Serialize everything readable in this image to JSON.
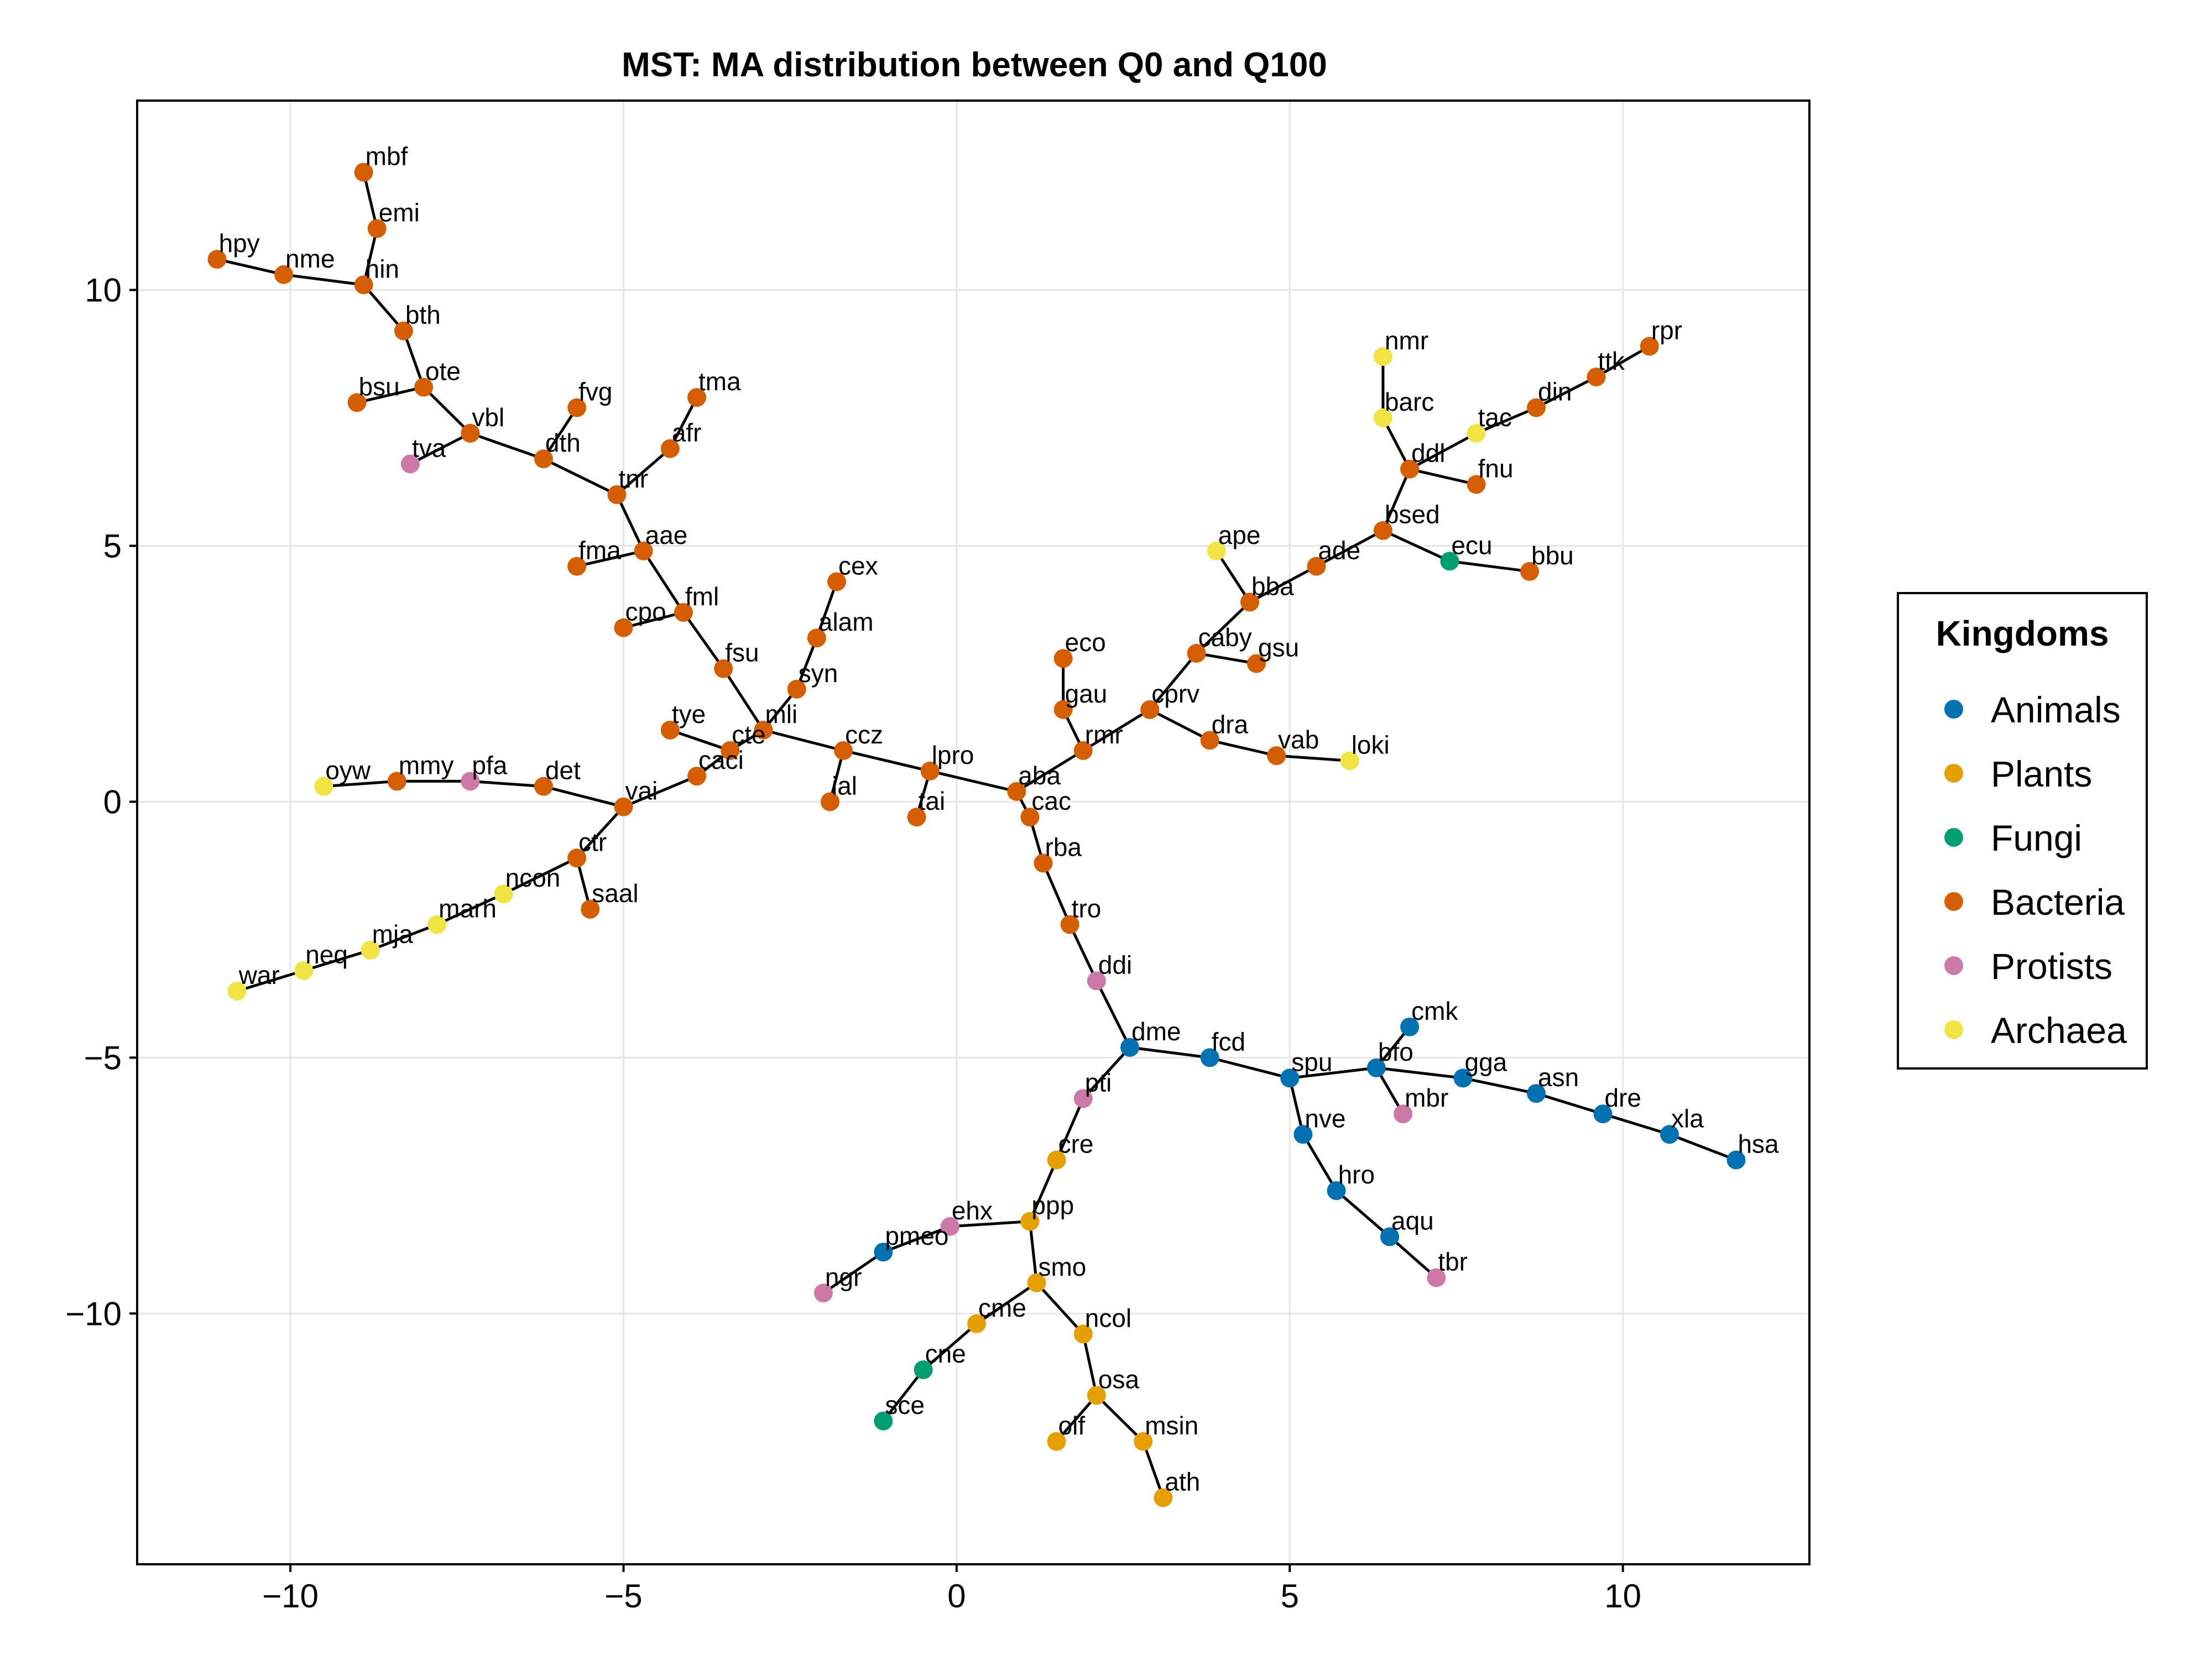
{
  "chart_data": {
    "type": "scatter",
    "title": "MST: MA distribution between Q0 and Q100",
    "xlabel": "",
    "ylabel": "",
    "xlim": [
      -12.3,
      12.8
    ],
    "ylim": [
      -14.9,
      13.7
    ],
    "xticks": [
      -10,
      -5,
      0,
      5,
      10
    ],
    "xtick_labels": [
      "−10",
      "−5",
      "0",
      "5",
      "10"
    ],
    "yticks": [
      -10,
      -5,
      0,
      5,
      10
    ],
    "ytick_labels": [
      "−10",
      "−5",
      "0",
      "5",
      "10"
    ],
    "grid": true,
    "legend": {
      "title": "Kingdoms",
      "placement": "right",
      "entries": [
        {
          "name": "Animals",
          "color": "#0072b2"
        },
        {
          "name": "Plants",
          "color": "#e69f00"
        },
        {
          "name": "Fungi",
          "color": "#009e73"
        },
        {
          "name": "Bacteria",
          "color": "#d55e00"
        },
        {
          "name": "Protists",
          "color": "#cc79a7"
        },
        {
          "name": "Archaea",
          "color": "#f0e442"
        }
      ]
    },
    "nodes": [
      {
        "label": "mbf",
        "x": -8.9,
        "y": 12.3,
        "kingdom": "Bacteria"
      },
      {
        "label": "emi",
        "x": -8.7,
        "y": 11.2,
        "kingdom": "Bacteria"
      },
      {
        "label": "hin",
        "x": -8.9,
        "y": 10.1,
        "kingdom": "Bacteria"
      },
      {
        "label": "hpy",
        "x": -11.1,
        "y": 10.6,
        "kingdom": "Bacteria"
      },
      {
        "label": "nme",
        "x": -10.1,
        "y": 10.3,
        "kingdom": "Bacteria"
      },
      {
        "label": "bth",
        "x": -8.3,
        "y": 9.2,
        "kingdom": "Bacteria"
      },
      {
        "label": "ote",
        "x": -8.0,
        "y": 8.1,
        "kingdom": "Bacteria"
      },
      {
        "label": "bsu",
        "x": -9.0,
        "y": 7.8,
        "kingdom": "Bacteria"
      },
      {
        "label": "vbl",
        "x": -7.3,
        "y": 7.2,
        "kingdom": "Bacteria"
      },
      {
        "label": "tva",
        "x": -8.2,
        "y": 6.6,
        "kingdom": "Protists"
      },
      {
        "label": "fvg",
        "x": -5.7,
        "y": 7.7,
        "kingdom": "Bacteria"
      },
      {
        "label": "dth",
        "x": -6.2,
        "y": 6.7,
        "kingdom": "Bacteria"
      },
      {
        "label": "tma",
        "x": -3.9,
        "y": 7.9,
        "kingdom": "Bacteria"
      },
      {
        "label": "afr",
        "x": -4.3,
        "y": 6.9,
        "kingdom": "Bacteria"
      },
      {
        "label": "tnr",
        "x": -5.1,
        "y": 6.0,
        "kingdom": "Bacteria"
      },
      {
        "label": "aae",
        "x": -4.7,
        "y": 4.9,
        "kingdom": "Bacteria"
      },
      {
        "label": "fma",
        "x": -5.7,
        "y": 4.6,
        "kingdom": "Bacteria"
      },
      {
        "label": "fml",
        "x": -4.1,
        "y": 3.7,
        "kingdom": "Bacteria"
      },
      {
        "label": "cpo",
        "x": -5.0,
        "y": 3.4,
        "kingdom": "Bacteria"
      },
      {
        "label": "fsu",
        "x": -3.5,
        "y": 2.6,
        "kingdom": "Bacteria"
      },
      {
        "label": "cex",
        "x": -1.8,
        "y": 4.3,
        "kingdom": "Bacteria"
      },
      {
        "label": "alam",
        "x": -2.1,
        "y": 3.2,
        "kingdom": "Bacteria"
      },
      {
        "label": "syn",
        "x": -2.4,
        "y": 2.2,
        "kingdom": "Bacteria"
      },
      {
        "label": "mli",
        "x": -2.9,
        "y": 1.4,
        "kingdom": "Bacteria"
      },
      {
        "label": "cte",
        "x": -3.4,
        "y": 1.0,
        "kingdom": "Bacteria"
      },
      {
        "label": "tye",
        "x": -4.3,
        "y": 1.4,
        "kingdom": "Bacteria"
      },
      {
        "label": "caci",
        "x": -3.9,
        "y": 0.5,
        "kingdom": "Bacteria"
      },
      {
        "label": "ccz",
        "x": -1.7,
        "y": 1.0,
        "kingdom": "Bacteria"
      },
      {
        "label": "lpro",
        "x": -0.4,
        "y": 0.6,
        "kingdom": "Bacteria"
      },
      {
        "label": "ial",
        "x": -1.9,
        "y": 0.0,
        "kingdom": "Bacteria"
      },
      {
        "label": "tai",
        "x": -0.6,
        "y": -0.3,
        "kingdom": "Bacteria"
      },
      {
        "label": "aba",
        "x": 0.9,
        "y": 0.2,
        "kingdom": "Bacteria"
      },
      {
        "label": "cac",
        "x": 1.1,
        "y": -0.3,
        "kingdom": "Bacteria"
      },
      {
        "label": "rba",
        "x": 1.3,
        "y": -1.2,
        "kingdom": "Bacteria"
      },
      {
        "label": "tro",
        "x": 1.7,
        "y": -2.4,
        "kingdom": "Bacteria"
      },
      {
        "label": "ddi",
        "x": 2.1,
        "y": -3.5,
        "kingdom": "Protists"
      },
      {
        "label": "dme",
        "x": 2.6,
        "y": -4.8,
        "kingdom": "Animals"
      },
      {
        "label": "fcd",
        "x": 3.8,
        "y": -5.0,
        "kingdom": "Animals"
      },
      {
        "label": "spu",
        "x": 5.0,
        "y": -5.4,
        "kingdom": "Animals"
      },
      {
        "label": "bfo",
        "x": 6.3,
        "y": -5.2,
        "kingdom": "Animals"
      },
      {
        "label": "cmk",
        "x": 6.8,
        "y": -4.4,
        "kingdom": "Animals"
      },
      {
        "label": "mbr",
        "x": 6.7,
        "y": -6.1,
        "kingdom": "Protists"
      },
      {
        "label": "gga",
        "x": 7.6,
        "y": -5.4,
        "kingdom": "Animals"
      },
      {
        "label": "asn",
        "x": 8.7,
        "y": -5.7,
        "kingdom": "Animals"
      },
      {
        "label": "dre",
        "x": 9.7,
        "y": -6.1,
        "kingdom": "Animals"
      },
      {
        "label": "xla",
        "x": 10.7,
        "y": -6.5,
        "kingdom": "Animals"
      },
      {
        "label": "hsa",
        "x": 11.7,
        "y": -7.0,
        "kingdom": "Animals"
      },
      {
        "label": "nve",
        "x": 5.2,
        "y": -6.5,
        "kingdom": "Animals"
      },
      {
        "label": "hro",
        "x": 5.7,
        "y": -7.6,
        "kingdom": "Animals"
      },
      {
        "label": "aqu",
        "x": 6.5,
        "y": -8.5,
        "kingdom": "Animals"
      },
      {
        "label": "tbr",
        "x": 7.2,
        "y": -9.3,
        "kingdom": "Protists"
      },
      {
        "label": "pti",
        "x": 1.9,
        "y": -5.8,
        "kingdom": "Protists"
      },
      {
        "label": "cre",
        "x": 1.5,
        "y": -7.0,
        "kingdom": "Plants"
      },
      {
        "label": "ppp",
        "x": 1.1,
        "y": -8.2,
        "kingdom": "Plants"
      },
      {
        "label": "ehx",
        "x": -0.1,
        "y": -8.3,
        "kingdom": "Protists"
      },
      {
        "label": "pmeo",
        "x": -1.1,
        "y": -8.8,
        "kingdom": "Animals"
      },
      {
        "label": "ngr",
        "x": -2.0,
        "y": -9.6,
        "kingdom": "Protists"
      },
      {
        "label": "smo",
        "x": 1.2,
        "y": -9.4,
        "kingdom": "Plants"
      },
      {
        "label": "cme",
        "x": 0.3,
        "y": -10.2,
        "kingdom": "Plants"
      },
      {
        "label": "cne",
        "x": -0.5,
        "y": -11.1,
        "kingdom": "Fungi"
      },
      {
        "label": "sce",
        "x": -1.1,
        "y": -12.1,
        "kingdom": "Fungi"
      },
      {
        "label": "ncol",
        "x": 1.9,
        "y": -10.4,
        "kingdom": "Plants"
      },
      {
        "label": "osa",
        "x": 2.1,
        "y": -11.6,
        "kingdom": "Plants"
      },
      {
        "label": "olf",
        "x": 1.5,
        "y": -12.5,
        "kingdom": "Plants"
      },
      {
        "label": "msin",
        "x": 2.8,
        "y": -12.5,
        "kingdom": "Plants"
      },
      {
        "label": "ath",
        "x": 3.1,
        "y": -13.6,
        "kingdom": "Plants"
      },
      {
        "label": "rmr",
        "x": 1.9,
        "y": 1.0,
        "kingdom": "Bacteria"
      },
      {
        "label": "gau",
        "x": 1.6,
        "y": 1.8,
        "kingdom": "Bacteria"
      },
      {
        "label": "eco",
        "x": 1.6,
        "y": 2.8,
        "kingdom": "Bacteria"
      },
      {
        "label": "cprv",
        "x": 2.9,
        "y": 1.8,
        "kingdom": "Bacteria"
      },
      {
        "label": "dra",
        "x": 3.8,
        "y": 1.2,
        "kingdom": "Bacteria"
      },
      {
        "label": "vab",
        "x": 4.8,
        "y": 0.9,
        "kingdom": "Bacteria"
      },
      {
        "label": "loki",
        "x": 5.9,
        "y": 0.8,
        "kingdom": "Archaea"
      },
      {
        "label": "caby",
        "x": 3.6,
        "y": 2.9,
        "kingdom": "Bacteria"
      },
      {
        "label": "gsu",
        "x": 4.5,
        "y": 2.7,
        "kingdom": "Bacteria"
      },
      {
        "label": "bba",
        "x": 4.4,
        "y": 3.9,
        "kingdom": "Bacteria"
      },
      {
        "label": "ape",
        "x": 3.9,
        "y": 4.9,
        "kingdom": "Archaea"
      },
      {
        "label": "ade",
        "x": 5.4,
        "y": 4.6,
        "kingdom": "Bacteria"
      },
      {
        "label": "bsed",
        "x": 6.4,
        "y": 5.3,
        "kingdom": "Bacteria"
      },
      {
        "label": "ecu",
        "x": 7.4,
        "y": 4.7,
        "kingdom": "Fungi"
      },
      {
        "label": "bbu",
        "x": 8.6,
        "y": 4.5,
        "kingdom": "Bacteria"
      },
      {
        "label": "ddl",
        "x": 6.8,
        "y": 6.5,
        "kingdom": "Bacteria"
      },
      {
        "label": "fnu",
        "x": 7.8,
        "y": 6.2,
        "kingdom": "Bacteria"
      },
      {
        "label": "barc",
        "x": 6.4,
        "y": 7.5,
        "kingdom": "Archaea"
      },
      {
        "label": "nmr",
        "x": 6.4,
        "y": 8.7,
        "kingdom": "Archaea"
      },
      {
        "label": "tac",
        "x": 7.8,
        "y": 7.2,
        "kingdom": "Archaea"
      },
      {
        "label": "din",
        "x": 8.7,
        "y": 7.7,
        "kingdom": "Bacteria"
      },
      {
        "label": "ttk",
        "x": 9.6,
        "y": 8.3,
        "kingdom": "Bacteria"
      },
      {
        "label": "rpr",
        "x": 10.4,
        "y": 8.9,
        "kingdom": "Bacteria"
      },
      {
        "label": "vai",
        "x": -5.0,
        "y": -0.1,
        "kingdom": "Bacteria"
      },
      {
        "label": "det",
        "x": -6.2,
        "y": 0.3,
        "kingdom": "Bacteria"
      },
      {
        "label": "pfa",
        "x": -7.3,
        "y": 0.4,
        "kingdom": "Protists"
      },
      {
        "label": "mmy",
        "x": -8.4,
        "y": 0.4,
        "kingdom": "Bacteria"
      },
      {
        "label": "oyw",
        "x": -9.5,
        "y": 0.3,
        "kingdom": "Archaea"
      },
      {
        "label": "ctr",
        "x": -5.7,
        "y": -1.1,
        "kingdom": "Bacteria"
      },
      {
        "label": "saal",
        "x": -5.5,
        "y": -2.1,
        "kingdom": "Bacteria"
      },
      {
        "label": "ncon",
        "x": -6.8,
        "y": -1.8,
        "kingdom": "Archaea"
      },
      {
        "label": "marh",
        "x": -7.8,
        "y": -2.4,
        "kingdom": "Archaea"
      },
      {
        "label": "mja",
        "x": -8.8,
        "y": -2.9,
        "kingdom": "Archaea"
      },
      {
        "label": "neq",
        "x": -9.8,
        "y": -3.3,
        "kingdom": "Archaea"
      },
      {
        "label": "war",
        "x": -10.8,
        "y": -3.7,
        "kingdom": "Archaea"
      }
    ],
    "edges": [
      [
        "mbf",
        "emi"
      ],
      [
        "emi",
        "hin"
      ],
      [
        "hin",
        "nme"
      ],
      [
        "nme",
        "hpy"
      ],
      [
        "hin",
        "bth"
      ],
      [
        "bth",
        "ote"
      ],
      [
        "ote",
        "bsu"
      ],
      [
        "ote",
        "vbl"
      ],
      [
        "vbl",
        "tva"
      ],
      [
        "vbl",
        "dth"
      ],
      [
        "dth",
        "fvg"
      ],
      [
        "dth",
        "tnr"
      ],
      [
        "tnr",
        "afr"
      ],
      [
        "afr",
        "tma"
      ],
      [
        "tnr",
        "aae"
      ],
      [
        "aae",
        "fma"
      ],
      [
        "aae",
        "fml"
      ],
      [
        "fml",
        "cpo"
      ],
      [
        "fml",
        "fsu"
      ],
      [
        "fsu",
        "mli"
      ],
      [
        "mli",
        "syn"
      ],
      [
        "syn",
        "alam"
      ],
      [
        "alam",
        "cex"
      ],
      [
        "mli",
        "cte"
      ],
      [
        "cte",
        "tye"
      ],
      [
        "cte",
        "caci"
      ],
      [
        "caci",
        "vai"
      ],
      [
        "vai",
        "det"
      ],
      [
        "det",
        "pfa"
      ],
      [
        "pfa",
        "mmy"
      ],
      [
        "mmy",
        "oyw"
      ],
      [
        "vai",
        "ctr"
      ],
      [
        "ctr",
        "saal"
      ],
      [
        "ctr",
        "ncon"
      ],
      [
        "ncon",
        "marh"
      ],
      [
        "marh",
        "mja"
      ],
      [
        "mja",
        "neq"
      ],
      [
        "neq",
        "war"
      ],
      [
        "mli",
        "ccz"
      ],
      [
        "ccz",
        "ial"
      ],
      [
        "ccz",
        "lpro"
      ],
      [
        "lpro",
        "tai"
      ],
      [
        "lpro",
        "aba"
      ],
      [
        "aba",
        "cac"
      ],
      [
        "cac",
        "rba"
      ],
      [
        "rba",
        "tro"
      ],
      [
        "tro",
        "ddi"
      ],
      [
        "ddi",
        "dme"
      ],
      [
        "dme",
        "fcd"
      ],
      [
        "fcd",
        "spu"
      ],
      [
        "spu",
        "bfo"
      ],
      [
        "bfo",
        "cmk"
      ],
      [
        "bfo",
        "mbr"
      ],
      [
        "bfo",
        "gga"
      ],
      [
        "gga",
        "asn"
      ],
      [
        "asn",
        "dre"
      ],
      [
        "dre",
        "xla"
      ],
      [
        "xla",
        "hsa"
      ],
      [
        "spu",
        "nve"
      ],
      [
        "nve",
        "hro"
      ],
      [
        "hro",
        "aqu"
      ],
      [
        "aqu",
        "tbr"
      ],
      [
        "dme",
        "pti"
      ],
      [
        "pti",
        "cre"
      ],
      [
        "cre",
        "ppp"
      ],
      [
        "ppp",
        "ehx"
      ],
      [
        "ehx",
        "pmeo"
      ],
      [
        "pmeo",
        "ngr"
      ],
      [
        "ppp",
        "smo"
      ],
      [
        "smo",
        "cme"
      ],
      [
        "cme",
        "cne"
      ],
      [
        "cne",
        "sce"
      ],
      [
        "smo",
        "ncol"
      ],
      [
        "ncol",
        "osa"
      ],
      [
        "osa",
        "olf"
      ],
      [
        "osa",
        "msin"
      ],
      [
        "msin",
        "ath"
      ],
      [
        "aba",
        "rmr"
      ],
      [
        "rmr",
        "gau"
      ],
      [
        "gau",
        "eco"
      ],
      [
        "rmr",
        "cprv"
      ],
      [
        "cprv",
        "dra"
      ],
      [
        "dra",
        "vab"
      ],
      [
        "vab",
        "loki"
      ],
      [
        "cprv",
        "caby"
      ],
      [
        "caby",
        "gsu"
      ],
      [
        "caby",
        "bba"
      ],
      [
        "bba",
        "ape"
      ],
      [
        "bba",
        "ade"
      ],
      [
        "ade",
        "bsed"
      ],
      [
        "bsed",
        "ecu"
      ],
      [
        "ecu",
        "bbu"
      ],
      [
        "bsed",
        "ddl"
      ],
      [
        "ddl",
        "fnu"
      ],
      [
        "ddl",
        "barc"
      ],
      [
        "barc",
        "nmr"
      ],
      [
        "ddl",
        "tac"
      ],
      [
        "tac",
        "din"
      ],
      [
        "din",
        "ttk"
      ],
      [
        "ttk",
        "rpr"
      ]
    ]
  }
}
